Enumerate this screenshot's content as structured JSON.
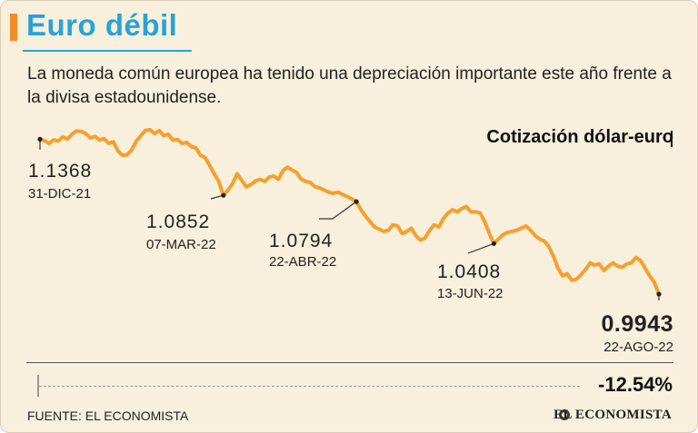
{
  "header": {
    "title": "Euro débil",
    "subtitle": "La moneda común europea  ha tenido una depreciación importante este año frente a la divisa estadounidense."
  },
  "chart_data": {
    "type": "line",
    "title": "Cotización dólar-euro",
    "xlabel": "",
    "ylabel": "",
    "grid": false,
    "ylim": [
      0.99,
      1.155
    ],
    "line_color": "#f5a02e",
    "series": [
      {
        "values": [
          1.1368,
          1.1355,
          1.133,
          1.1362,
          1.1352,
          1.139,
          1.137,
          1.1415,
          1.1445,
          1.144,
          1.142,
          1.138,
          1.1395,
          1.136,
          1.1375,
          1.133,
          1.1345,
          1.126,
          1.122,
          1.1225,
          1.127,
          1.135,
          1.14,
          1.145,
          1.1455,
          1.142,
          1.1448,
          1.14,
          1.1415,
          1.136,
          1.1365,
          1.133,
          1.134,
          1.13,
          1.129,
          1.122,
          1.12,
          1.113,
          1.105,
          1.098,
          1.0852,
          1.09,
          1.096,
          1.105,
          1.099,
          1.093,
          1.095,
          1.0985,
          1.1,
          1.098,
          1.102,
          1.103,
          1.1,
          1.108,
          1.111,
          1.1085,
          1.106,
          1.1,
          1.098,
          1.097,
          1.093,
          1.092,
          1.09,
          1.088,
          1.087,
          1.088,
          1.086,
          1.084,
          1.082,
          1.0794,
          1.072,
          1.066,
          1.061,
          1.056,
          1.054,
          1.052,
          1.053,
          1.058,
          1.057,
          1.05,
          1.052,
          1.055,
          1.048,
          1.044,
          1.046,
          1.053,
          1.058,
          1.056,
          1.064,
          1.069,
          1.072,
          1.07,
          1.073,
          1.075,
          1.07,
          1.07,
          1.069,
          1.061,
          1.05,
          1.0408,
          1.045,
          1.049,
          1.051,
          1.052,
          1.053,
          1.055,
          1.057,
          1.053,
          1.048,
          1.045,
          1.043,
          1.038,
          1.029,
          1.018,
          1.011,
          1.013,
          1.007,
          1.008,
          1.012,
          1.017,
          1.023,
          1.021,
          1.022,
          1.016,
          1.02,
          1.023,
          1.02,
          1.019,
          1.022,
          1.023,
          1.028,
          1.025,
          1.018,
          1.011,
          1.005,
          0.9943
        ]
      }
    ],
    "annotations": [
      {
        "index": 0,
        "value": "1.1368",
        "date": "31-DIC-21"
      },
      {
        "index": 40,
        "value": "1.0852",
        "date": "07-MAR-22"
      },
      {
        "index": 69,
        "value": "1.0794",
        "date": "22-ABR-22"
      },
      {
        "index": 99,
        "value": "1.0408",
        "date": "13-JUN-22"
      },
      {
        "index": 135,
        "value": "0.9943",
        "date": "22-AGO-22"
      }
    ],
    "change": "-12.54%"
  },
  "footer": {
    "source": "FUENTE: EL ECONOMISTA",
    "brand": "EL ECONOMISTA"
  }
}
